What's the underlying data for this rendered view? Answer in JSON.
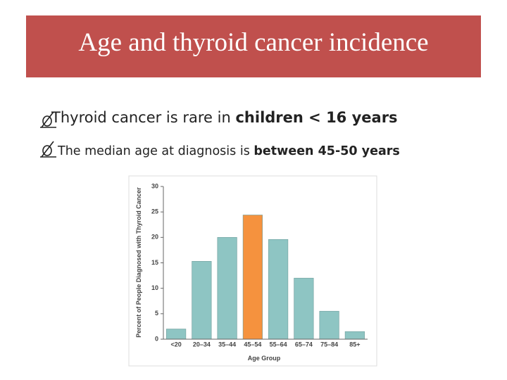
{
  "slide": {
    "title": "Age and thyroid cancer incidence",
    "bullets": [
      {
        "text": "Thyroid cancer is rare in ",
        "emphasis": "children < 16 years"
      },
      {
        "text": "The median age at diagnosis is ",
        "emphasis": "between 45-50 years"
      }
    ]
  },
  "chart_data": {
    "type": "bar",
    "x_label": "Age Group",
    "y_label": "Percent of People Diagnosed with Thyroid Cancer",
    "categories": [
      "<20",
      "20–34",
      "35–44",
      "45–54",
      "55–64",
      "65–74",
      "75–84",
      "85+"
    ],
    "values": [
      2,
      15.3,
      20,
      24.4,
      19.6,
      12,
      5.5,
      1.5
    ],
    "colors": [
      "#8ec5c3",
      "#8ec5c3",
      "#8ec5c3",
      "#f5923e",
      "#8ec5c3",
      "#8ec5c3",
      "#8ec5c3",
      "#8ec5c3"
    ],
    "ylim": [
      0,
      30
    ],
    "yticks": [
      0,
      5,
      10,
      15,
      20,
      25,
      30
    ]
  }
}
